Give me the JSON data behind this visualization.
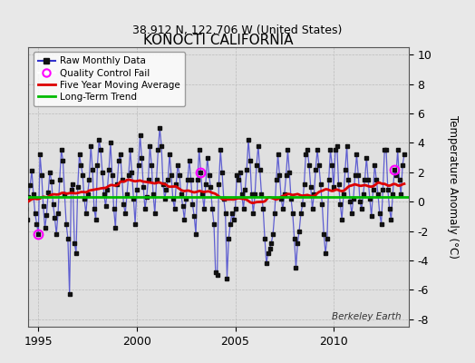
{
  "title": "KONOCTI CALIFORNIA",
  "subtitle": "38.912 N, 122.706 W (United States)",
  "ylabel": "Temperature Anomaly (°C)",
  "watermark": "Berkeley Earth",
  "xlim": [
    1994.5,
    2013.8
  ],
  "ylim": [
    -8.5,
    10.5
  ],
  "yticks": [
    -8,
    -6,
    -4,
    -2,
    0,
    2,
    4,
    6,
    8,
    10
  ],
  "xticks": [
    1995,
    2000,
    2005,
    2010
  ],
  "bg_color": "#e8e8e8",
  "plot_bg_color": "#e0e0e0",
  "line_color": "#3333cc",
  "marker_color": "#111111",
  "ma_color": "#dd0000",
  "trend_color": "#00bb00",
  "qc_color": "#ff00ff",
  "start_year": 1994.0,
  "long_term_trend_value": 0.3,
  "raw_data": [
    1.2,
    2.8,
    1.5,
    0.8,
    -0.5,
    -1.2,
    0.3,
    1.1,
    2.1,
    0.5,
    -0.8,
    -1.5,
    -2.2,
    3.2,
    1.8,
    -0.3,
    -1.8,
    -0.9,
    0.6,
    2.0,
    1.4,
    -0.2,
    -1.1,
    -2.2,
    -0.8,
    1.5,
    3.5,
    2.8,
    0.5,
    -1.5,
    -2.5,
    -6.3,
    0.8,
    1.2,
    -2.8,
    -3.5,
    1.0,
    3.2,
    2.5,
    1.8,
    0.2,
    -0.8,
    0.5,
    1.5,
    3.8,
    2.2,
    -0.5,
    -1.2,
    2.5,
    4.2,
    3.5,
    2.0,
    0.5,
    -0.3,
    0.8,
    2.2,
    4.0,
    1.8,
    -0.5,
    -1.8,
    1.2,
    2.8,
    3.2,
    1.5,
    -0.2,
    -0.8,
    0.5,
    1.8,
    3.5,
    2.0,
    0.2,
    -1.5,
    0.8,
    2.5,
    4.5,
    3.0,
    1.0,
    -0.5,
    0.3,
    1.5,
    3.8,
    2.5,
    0.5,
    -0.8,
    1.5,
    3.5,
    5.0,
    3.8,
    1.2,
    0.2,
    0.8,
    1.5,
    3.2,
    1.8,
    0.2,
    -0.5,
    1.2,
    2.5,
    1.8,
    0.5,
    -0.3,
    -1.2,
    0.2,
    1.5,
    2.8,
    1.5,
    -0.2,
    -1.0,
    -2.2,
    1.5,
    3.5,
    2.0,
    0.5,
    -0.5,
    1.2,
    3.0,
    1.8,
    1.0,
    -0.5,
    -1.5,
    -4.8,
    -5.0,
    1.2,
    3.5,
    2.0,
    0.2,
    -0.8,
    -5.2,
    -2.5,
    -1.5,
    -0.8,
    -1.2,
    -0.5,
    1.8,
    1.5,
    2.0,
    0.5,
    -0.5,
    0.8,
    2.2,
    4.2,
    2.8,
    0.5,
    -0.8,
    0.5,
    2.5,
    3.8,
    2.2,
    0.5,
    -0.5,
    -2.5,
    -4.2,
    -3.5,
    -3.2,
    -2.8,
    -2.2,
    -0.8,
    1.5,
    3.2,
    1.8,
    0.2,
    -0.5,
    0.5,
    1.8,
    3.5,
    2.0,
    0.2,
    -0.8,
    -2.5,
    -4.5,
    -2.8,
    -2.0,
    -0.8,
    -0.2,
    1.2,
    3.2,
    3.5,
    2.5,
    1.0,
    -0.5,
    0.5,
    2.2,
    3.5,
    2.5,
    1.2,
    -0.2,
    -2.2,
    -3.5,
    -2.5,
    1.5,
    3.5,
    2.5,
    1.0,
    3.5,
    3.8,
    1.2,
    -0.2,
    -1.2,
    0.5,
    2.2,
    3.8,
    1.5,
    0.0,
    -0.8,
    0.2,
    1.8,
    3.2,
    1.8,
    0.0,
    -0.5,
    0.5,
    1.5,
    3.0,
    1.5,
    0.2,
    -1.0,
    0.8,
    2.5,
    1.5,
    0.5,
    -0.8,
    -1.5,
    0.8,
    3.5,
    3.5,
    0.8,
    -0.5,
    -1.2,
    0.5,
    2.2,
    1.8,
    3.5,
    1.5,
    0.5,
    2.5,
    3.2
  ],
  "qc_fail_indices": [
    12,
    111,
    229
  ]
}
